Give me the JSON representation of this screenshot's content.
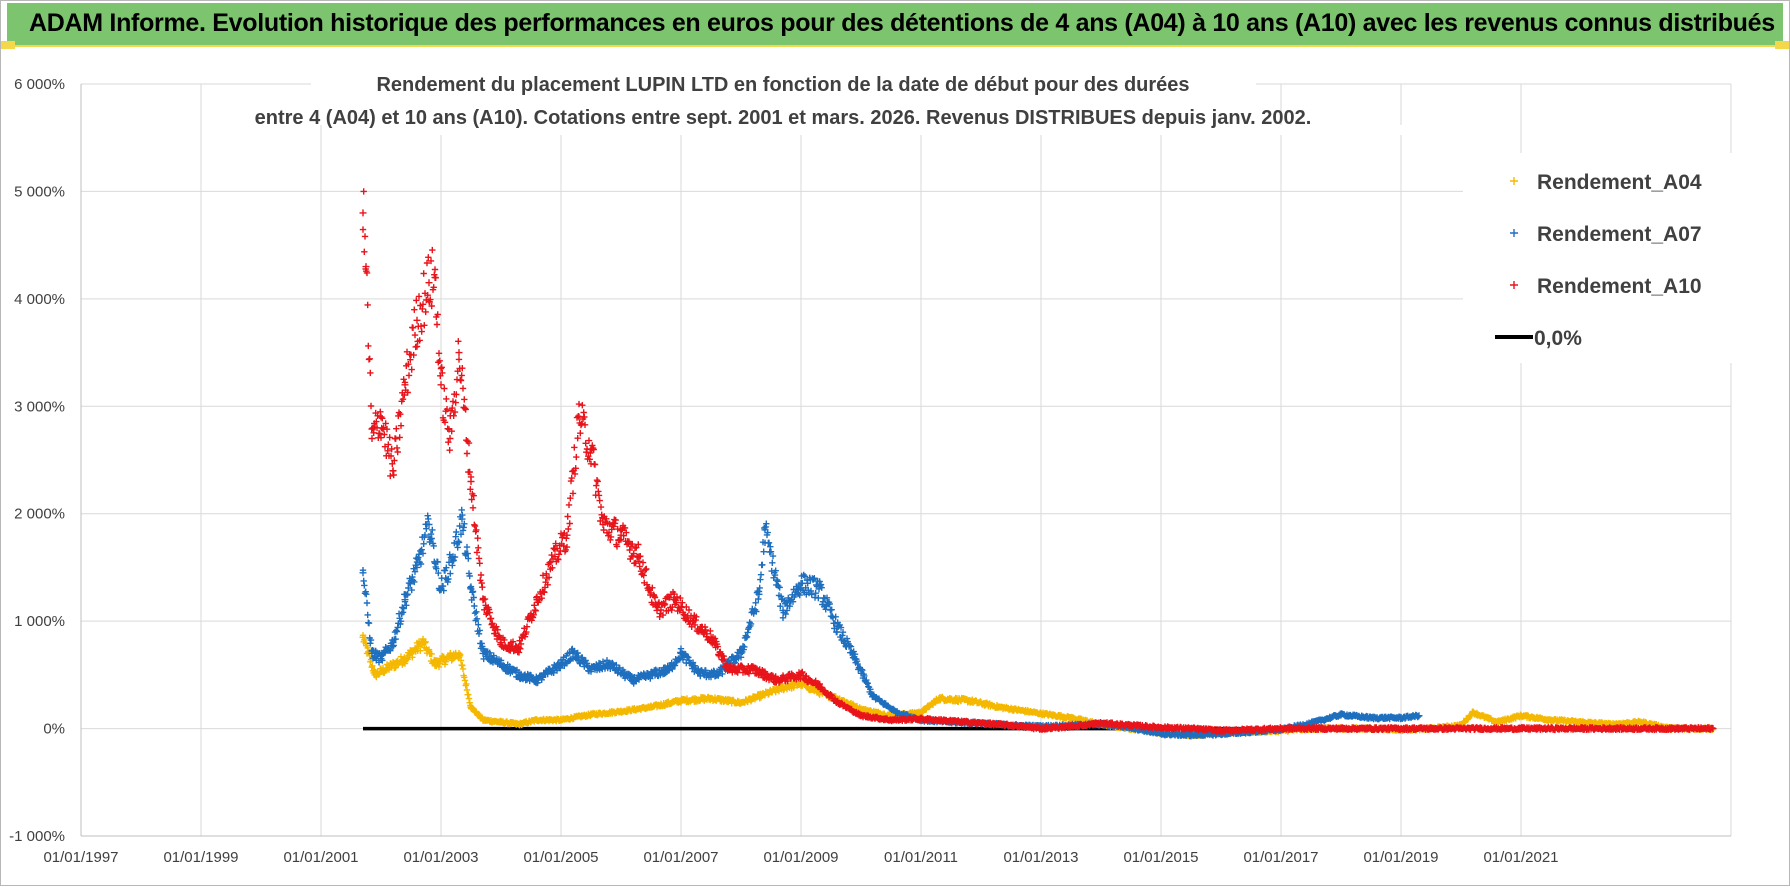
{
  "banner": {
    "text": "ADAM Informe. Evolution historique des performances en euros pour des détentions de 4 ans (A04) à 10 ans (A10) avec les revenus connus distribués",
    "color": "#7dc46e",
    "accent": "#f2d84a"
  },
  "chart_data": {
    "type": "scatter",
    "title_lines": [
      "Rendement du placement LUPIN LTD en fonction de la date de début pour des durées",
      "entre 4 (A04) et 10 ans (A10). Cotations entre sept. 2001 et mars. 2026. Revenus DISTRIBUES depuis janv. 2002."
    ],
    "xlabel": "",
    "ylabel": "",
    "xlim": [
      1997.0,
      2024.5
    ],
    "ylim": [
      -1000,
      6000
    ],
    "grid": true,
    "y_ticks": [
      {
        "value": 6000,
        "label": "6 000%"
      },
      {
        "value": 5000,
        "label": "5 000%"
      },
      {
        "value": 4000,
        "label": "4 000%"
      },
      {
        "value": 3000,
        "label": "3 000%"
      },
      {
        "value": 2000,
        "label": "2 000%"
      },
      {
        "value": 1000,
        "label": "1 000%"
      },
      {
        "value": 0,
        "label": "0%"
      },
      {
        "value": -1000,
        "label": "-1 000%"
      }
    ],
    "x_ticks": [
      {
        "value": 1997,
        "label": "01/01/1997"
      },
      {
        "value": 1999,
        "label": "01/01/1999"
      },
      {
        "value": 2001,
        "label": "01/01/2001"
      },
      {
        "value": 2003,
        "label": "01/01/2003"
      },
      {
        "value": 2005,
        "label": "01/01/2005"
      },
      {
        "value": 2007,
        "label": "01/01/2007"
      },
      {
        "value": 2009,
        "label": "01/01/2009"
      },
      {
        "value": 2011,
        "label": "01/01/2011"
      },
      {
        "value": 2013,
        "label": "01/01/2013"
      },
      {
        "value": 2015,
        "label": "01/01/2015"
      },
      {
        "value": 2017,
        "label": "01/01/2017"
      },
      {
        "value": 2019,
        "label": "01/01/2019"
      },
      {
        "value": 2021,
        "label": "01/01/2021"
      }
    ],
    "legend_position": "top-right",
    "series": [
      {
        "name": "Rendement_A04",
        "color": "#f5b800",
        "marker": "+",
        "x": [
          2001.7,
          2001.9,
          2002.1,
          2002.4,
          2002.7,
          2002.9,
          2003.1,
          2003.3,
          2003.5,
          2003.7,
          2004.0,
          2004.3,
          2004.6,
          2005.0,
          2005.5,
          2006.0,
          2006.5,
          2007.0,
          2007.5,
          2008.0,
          2008.3,
          2008.7,
          2009.0,
          2009.3,
          2009.7,
          2010.0,
          2010.5,
          2011.0,
          2011.3,
          2011.8,
          2012.3,
          2013.0,
          2013.5,
          2014.0,
          2014.5,
          2015.0,
          2015.5,
          2016.0,
          2016.5,
          2017.0,
          2017.5,
          2018.0,
          2018.5,
          2019.0,
          2019.5,
          2020.0,
          2020.2,
          2020.6,
          2021.0,
          2021.5,
          2022.0,
          2022.5,
          2023.0,
          2023.5,
          2024.2
        ],
        "y": [
          850,
          500,
          560,
          650,
          800,
          600,
          650,
          700,
          200,
          80,
          60,
          40,
          80,
          80,
          130,
          160,
          200,
          260,
          280,
          240,
          300,
          380,
          420,
          340,
          260,
          180,
          120,
          150,
          280,
          260,
          200,
          140,
          100,
          40,
          0,
          -40,
          -60,
          -40,
          -30,
          -20,
          0,
          0,
          0,
          -10,
          0,
          30,
          150,
          60,
          120,
          80,
          60,
          40,
          60,
          0,
          0
        ]
      },
      {
        "name": "Rendement_A07",
        "color": "#1f6fbf",
        "marker": "+",
        "x": [
          2001.7,
          2001.85,
          2002.0,
          2002.2,
          2002.4,
          2002.6,
          2002.8,
          2003.0,
          2003.2,
          2003.35,
          2003.5,
          2003.7,
          2004.0,
          2004.3,
          2004.6,
          2005.0,
          2005.2,
          2005.5,
          2005.8,
          2006.2,
          2006.5,
          2006.8,
          2007.0,
          2007.3,
          2007.6,
          2008.0,
          2008.3,
          2008.4,
          2008.7,
          2009.0,
          2009.3,
          2009.6,
          2009.9,
          2010.2,
          2010.6,
          2011.0,
          2011.5,
          2012.0,
          2012.5,
          2013.0,
          2013.5,
          2014.0,
          2014.5,
          2015.0,
          2015.5,
          2016.0,
          2016.5,
          2017.0,
          2017.5,
          2018.0,
          2018.5,
          2019.0,
          2019.3
        ],
        "y": [
          1450,
          700,
          650,
          800,
          1200,
          1500,
          1900,
          1300,
          1600,
          1950,
          1300,
          700,
          600,
          500,
          450,
          600,
          700,
          550,
          600,
          450,
          500,
          550,
          700,
          520,
          500,
          700,
          1250,
          1850,
          1100,
          1350,
          1300,
          950,
          650,
          300,
          150,
          80,
          60,
          50,
          30,
          20,
          30,
          40,
          10,
          -50,
          -60,
          -50,
          -30,
          -10,
          50,
          130,
          100,
          100,
          120
        ]
      },
      {
        "name": "Rendement_A10",
        "color": "#e8141b",
        "marker": "+",
        "x": [
          2001.7,
          2001.75,
          2001.85,
          2002.0,
          2002.2,
          2002.4,
          2002.6,
          2002.8,
          2002.9,
          2003.0,
          2003.15,
          2003.3,
          2003.5,
          2003.7,
          2004.0,
          2004.3,
          2004.6,
          2004.9,
          2005.1,
          2005.3,
          2005.5,
          2005.7,
          2006.0,
          2006.3,
          2006.6,
          2006.9,
          2007.2,
          2007.5,
          2007.8,
          2008.2,
          2008.6,
          2009.0,
          2009.3,
          2009.6,
          2010.0,
          2010.5,
          2011.0,
          2011.5,
          2012.0,
          2012.5,
          2013.0,
          2013.5,
          2014.0,
          2014.5,
          2015.0,
          2015.5,
          2016.0,
          2016.5,
          2017.0,
          2017.5,
          2018.0,
          2018.5,
          2019.0,
          2019.5,
          2020.0,
          2020.5,
          2021.0,
          2021.5,
          2022.0,
          2022.5,
          2023.0,
          2023.5,
          2024.0,
          2024.2
        ],
        "y": [
          4800,
          4300,
          2700,
          2900,
          2400,
          3200,
          3800,
          4150,
          4200,
          3200,
          2700,
          3500,
          2300,
          1200,
          800,
          750,
          1200,
          1600,
          1800,
          2900,
          2600,
          1900,
          1800,
          1600,
          1100,
          1200,
          1000,
          850,
          550,
          550,
          450,
          500,
          400,
          250,
          120,
          80,
          90,
          70,
          50,
          30,
          0,
          20,
          50,
          30,
          10,
          0,
          -20,
          -10,
          0,
          0,
          0,
          0,
          0,
          0,
          0,
          0,
          0,
          0,
          0,
          0,
          0,
          0,
          0,
          0
        ]
      },
      {
        "name": "0,0%",
        "color": "#000000",
        "marker": "line",
        "x": [
          2001.7,
          2024.2
        ],
        "y": [
          0,
          0
        ]
      }
    ]
  }
}
